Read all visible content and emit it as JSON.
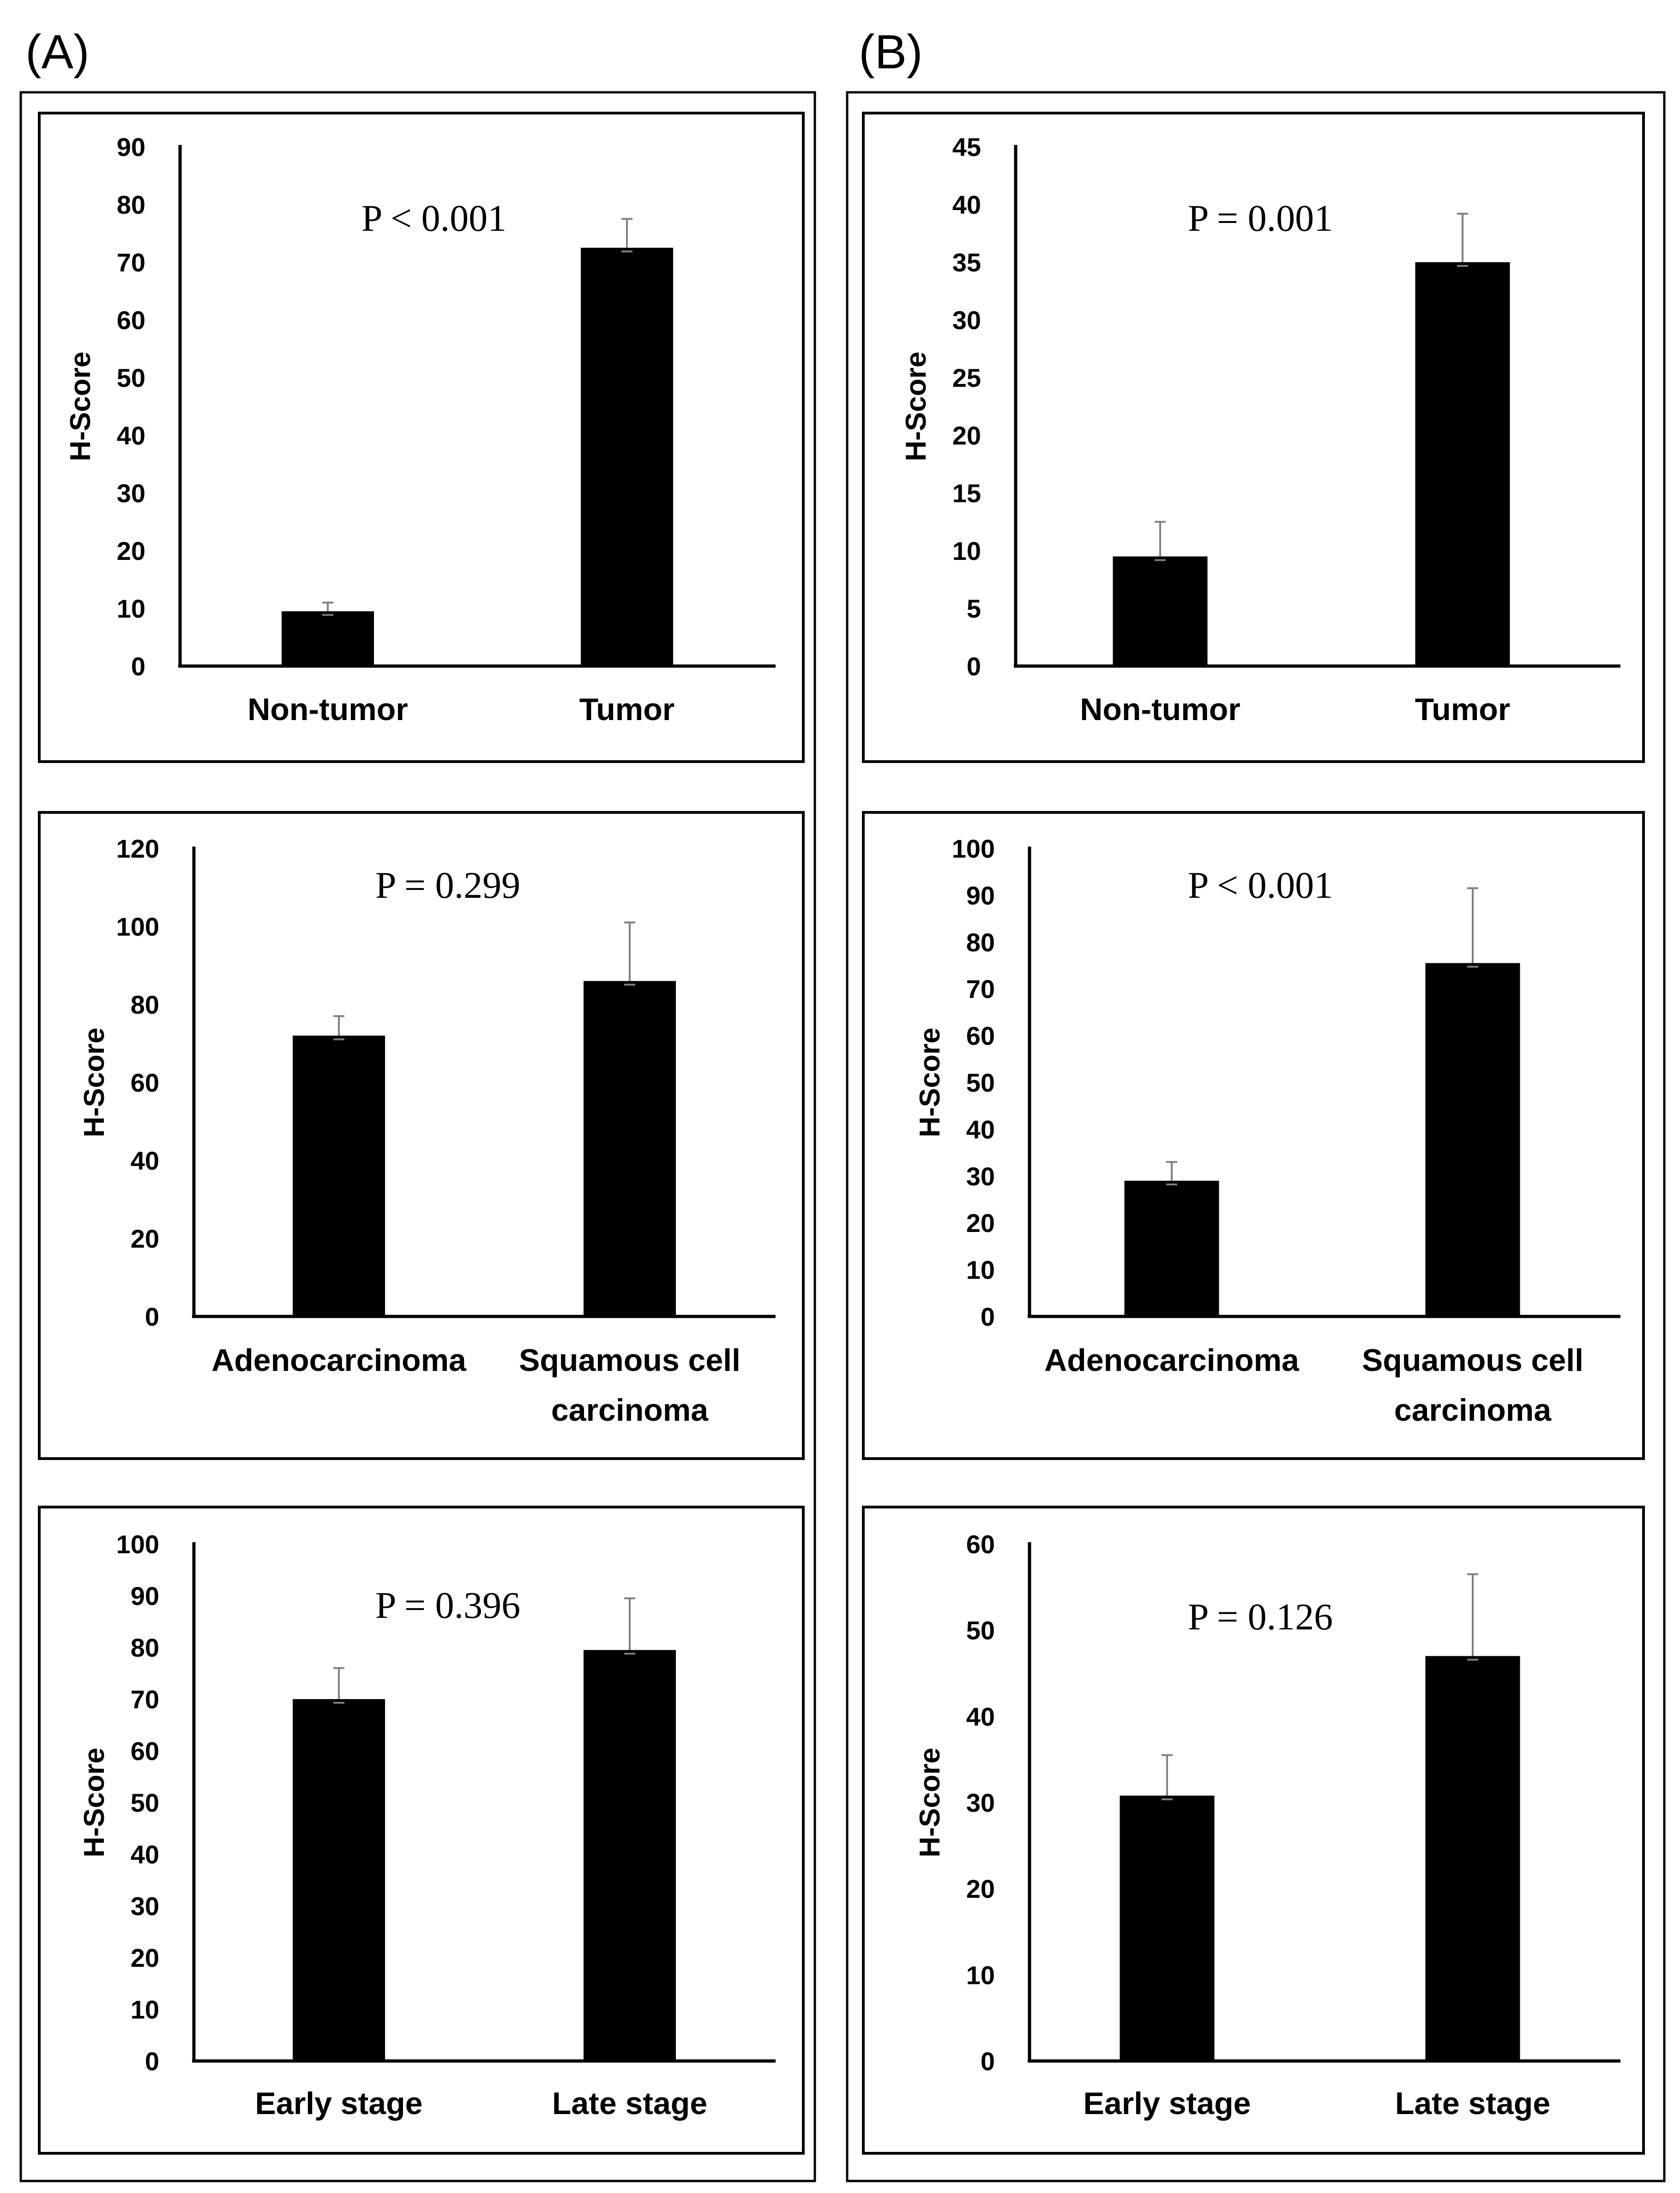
{
  "panel_labels": [
    "(A)",
    "(B)"
  ],
  "chart_data": [
    {
      "type": "bar",
      "column": "A",
      "row": 0,
      "ylabel": "H-Score",
      "annotation": "P < 0.001",
      "categories": [
        [
          "Non-tumor"
        ],
        [
          "Tumor"
        ]
      ],
      "values": [
        9.5,
        72.5
      ],
      "errors": [
        1.5,
        5
      ],
      "ylim": [
        0,
        90
      ],
      "yticks": [
        0,
        10,
        20,
        30,
        40,
        50,
        60,
        70,
        80,
        90
      ]
    },
    {
      "type": "bar",
      "column": "A",
      "row": 1,
      "ylabel": "H-Score",
      "annotation": "P = 0.299",
      "categories": [
        [
          "Adenocarcinoma"
        ],
        [
          "Squamous cell",
          "carcinoma"
        ]
      ],
      "values": [
        72,
        86
      ],
      "errors": [
        5,
        15
      ],
      "ylim": [
        0,
        120
      ],
      "yticks": [
        0,
        20,
        40,
        60,
        80,
        100,
        120
      ]
    },
    {
      "type": "bar",
      "column": "A",
      "row": 2,
      "ylabel": "H-Score",
      "annotation": "P = 0.396",
      "categories": [
        [
          "Early stage"
        ],
        [
          "Late stage"
        ]
      ],
      "values": [
        70,
        79.5
      ],
      "errors": [
        6,
        10
      ],
      "ylim": [
        0,
        100
      ],
      "yticks": [
        0,
        10,
        20,
        30,
        40,
        50,
        60,
        70,
        80,
        90,
        100
      ]
    },
    {
      "type": "bar",
      "column": "B",
      "row": 0,
      "ylabel": "H-Score",
      "annotation": "P = 0.001",
      "categories": [
        [
          "Non-tumor"
        ],
        [
          "Tumor"
        ]
      ],
      "values": [
        9.5,
        35
      ],
      "errors": [
        3,
        4.2
      ],
      "ylim": [
        0,
        45
      ],
      "yticks": [
        0,
        5,
        10,
        15,
        20,
        25,
        30,
        35,
        40,
        45
      ]
    },
    {
      "type": "bar",
      "column": "B",
      "row": 1,
      "ylabel": "H-Score",
      "annotation": "P < 0.001",
      "categories": [
        [
          "Adenocarcinoma"
        ],
        [
          "Squamous cell",
          "carcinoma"
        ]
      ],
      "values": [
        29,
        75.5
      ],
      "errors": [
        4,
        16
      ],
      "ylim": [
        0,
        100
      ],
      "yticks": [
        0,
        10,
        20,
        30,
        40,
        50,
        60,
        70,
        80,
        90,
        100
      ]
    },
    {
      "type": "bar",
      "column": "B",
      "row": 2,
      "ylabel": "H-Score",
      "annotation": "P = 0.126",
      "categories": [
        [
          "Early stage"
        ],
        [
          "Late stage"
        ]
      ],
      "values": [
        30.8,
        47
      ],
      "errors": [
        4.7,
        9.5
      ],
      "ylim": [
        0,
        60
      ],
      "yticks": [
        0,
        10,
        20,
        30,
        40,
        50,
        60
      ]
    }
  ]
}
